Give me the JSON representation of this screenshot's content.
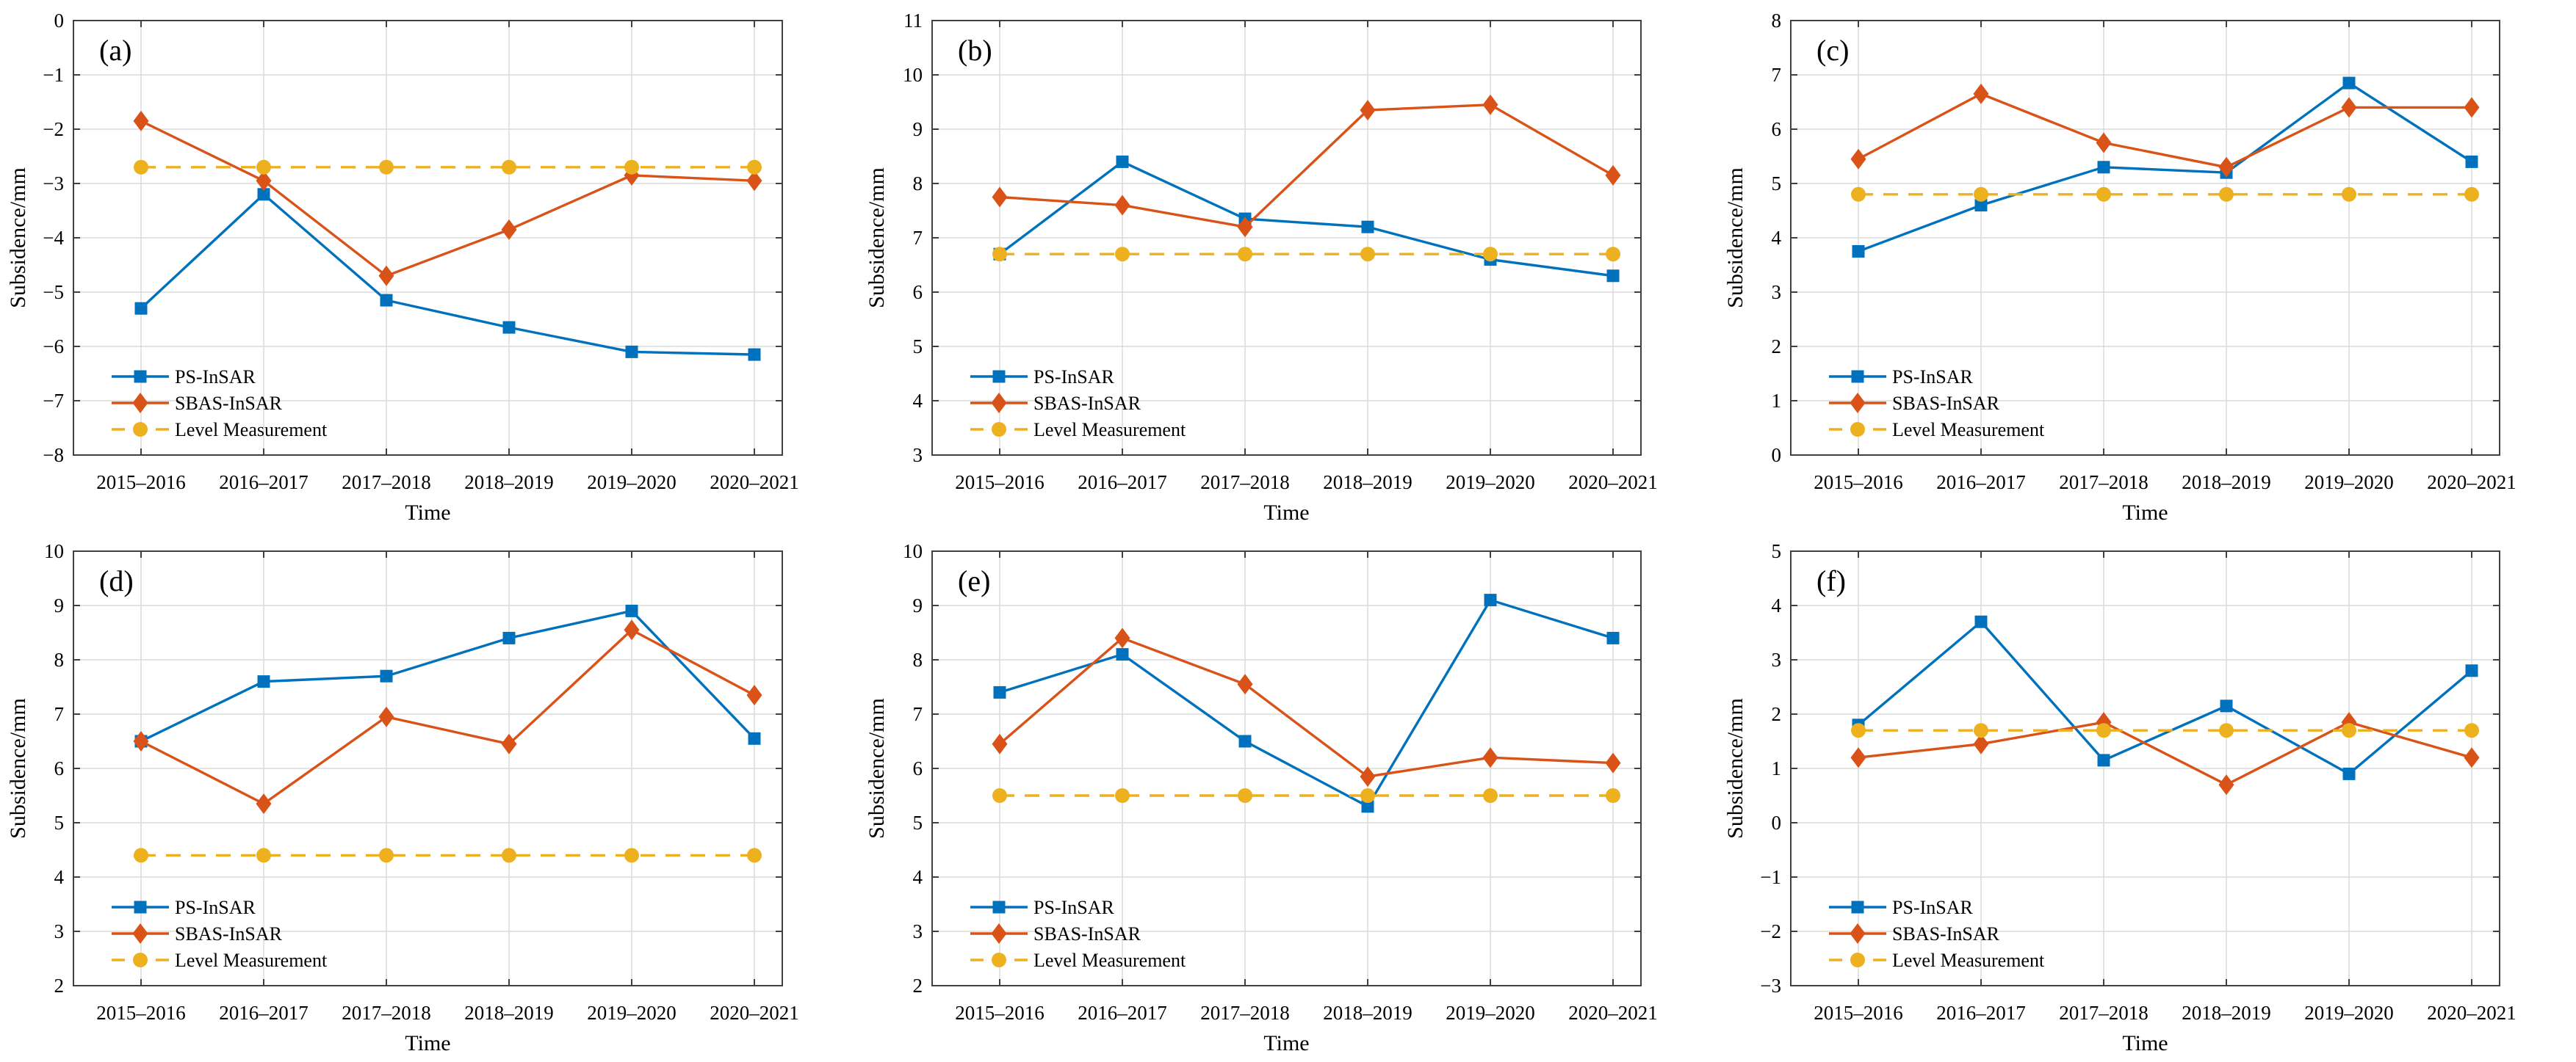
{
  "figure_title": "",
  "xlabel": "Time",
  "ylabel": "Subsidence/mm",
  "categories": [
    "2015–2016",
    "2016–2017",
    "2017–2018",
    "2018–2019",
    "2019–2020",
    "2020–2021"
  ],
  "colors": {
    "ps_insar": "#0072BD",
    "sbas_insar": "#D95319",
    "level_measurement": "#EDB120",
    "grid": "#DBDBDB",
    "axis": "#404040",
    "text": "#000000",
    "background": "#ffffff"
  },
  "legend_labels": [
    "PS-InSAR",
    "SBAS-InSAR",
    "Level Measurement"
  ],
  "chart_data": [
    {
      "type": "line",
      "panel": "(a)",
      "x": [
        "2015–2016",
        "2016–2017",
        "2017–2018",
        "2018–2019",
        "2019–2020",
        "2020–2021"
      ],
      "xlabel": "Time",
      "ylabel": "Subsidence/mm",
      "ylim": [
        -8,
        0
      ],
      "yticks": [
        "0",
        "−1",
        "−2",
        "−3",
        "−4",
        "−5",
        "−6",
        "−7",
        "−8"
      ],
      "grid": true,
      "legend_position": "lower-left",
      "series": [
        {
          "name": "PS-InSAR",
          "marker": "square",
          "line": "solid",
          "color": "#0072BD",
          "values": [
            -5.3,
            -3.2,
            -5.15,
            -5.65,
            -6.1,
            -6.15
          ]
        },
        {
          "name": "SBAS-InSAR",
          "marker": "diamond",
          "line": "solid",
          "color": "#D95319",
          "values": [
            -1.85,
            -2.95,
            -4.7,
            -3.85,
            -2.85,
            -2.95
          ]
        },
        {
          "name": "Level Measurement",
          "marker": "circle",
          "line": "dashed",
          "color": "#EDB120",
          "values": [
            -2.7,
            -2.7,
            -2.7,
            -2.7,
            -2.7,
            -2.7
          ]
        }
      ]
    },
    {
      "type": "line",
      "panel": "(b)",
      "x": [
        "2015–2016",
        "2016–2017",
        "2017–2018",
        "2018–2019",
        "2019–2020",
        "2020–2021"
      ],
      "xlabel": "Time",
      "ylabel": "Subsidence/mm",
      "ylim": [
        3,
        11
      ],
      "yticks": [
        "11",
        "10",
        "9",
        "8",
        "7",
        "6",
        "5",
        "4",
        "3"
      ],
      "grid": true,
      "legend_position": "lower-left",
      "series": [
        {
          "name": "PS-InSAR",
          "marker": "square",
          "line": "solid",
          "color": "#0072BD",
          "values": [
            6.7,
            8.4,
            7.35,
            7.2,
            6.6,
            6.3
          ]
        },
        {
          "name": "SBAS-InSAR",
          "marker": "diamond",
          "line": "solid",
          "color": "#D95319",
          "values": [
            7.75,
            7.6,
            7.2,
            9.35,
            9.45,
            8.15
          ]
        },
        {
          "name": "Level Measurement",
          "marker": "circle",
          "line": "dashed",
          "color": "#EDB120",
          "values": [
            6.7,
            6.7,
            6.7,
            6.7,
            6.7,
            6.7
          ]
        }
      ]
    },
    {
      "type": "line",
      "panel": "(c)",
      "x": [
        "2015–2016",
        "2016–2017",
        "2017–2018",
        "2018–2019",
        "2019–2020",
        "2020–2021"
      ],
      "xlabel": "Time",
      "ylabel": "Subsidence/mm",
      "ylim": [
        0,
        8
      ],
      "yticks": [
        "8",
        "7",
        "6",
        "5",
        "4",
        "3",
        "2",
        "1",
        "0"
      ],
      "grid": true,
      "legend_position": "lower-left",
      "series": [
        {
          "name": "PS-InSAR",
          "marker": "square",
          "line": "solid",
          "color": "#0072BD",
          "values": [
            3.75,
            4.6,
            5.3,
            5.2,
            6.85,
            5.4
          ]
        },
        {
          "name": "SBAS-InSAR",
          "marker": "diamond",
          "line": "solid",
          "color": "#D95319",
          "values": [
            5.45,
            6.65,
            5.75,
            5.3,
            6.4,
            6.4
          ]
        },
        {
          "name": "Level Measurement",
          "marker": "circle",
          "line": "dashed",
          "color": "#EDB120",
          "values": [
            4.8,
            4.8,
            4.8,
            4.8,
            4.8,
            4.8
          ]
        }
      ]
    },
    {
      "type": "line",
      "panel": "(d)",
      "x": [
        "2015–2016",
        "2016–2017",
        "2017–2018",
        "2018–2019",
        "2019–2020",
        "2020–2021"
      ],
      "xlabel": "Time",
      "ylabel": "Subsidence/mm",
      "ylim": [
        2,
        10
      ],
      "yticks": [
        "10",
        "9",
        "8",
        "7",
        "6",
        "5",
        "4",
        "3",
        "2"
      ],
      "grid": true,
      "legend_position": "lower-left",
      "series": [
        {
          "name": "PS-InSAR",
          "marker": "square",
          "line": "solid",
          "color": "#0072BD",
          "values": [
            6.5,
            7.6,
            7.7,
            8.4,
            8.9,
            6.55
          ]
        },
        {
          "name": "SBAS-InSAR",
          "marker": "diamond",
          "line": "solid",
          "color": "#D95319",
          "values": [
            6.5,
            5.35,
            6.95,
            6.45,
            8.55,
            7.35
          ]
        },
        {
          "name": "Level Measurement",
          "marker": "circle",
          "line": "dashed",
          "color": "#EDB120",
          "values": [
            4.4,
            4.4,
            4.4,
            4.4,
            4.4,
            4.4
          ]
        }
      ]
    },
    {
      "type": "line",
      "panel": "(e)",
      "x": [
        "2015–2016",
        "2016–2017",
        "2017–2018",
        "2018–2019",
        "2019–2020",
        "2020–2021"
      ],
      "xlabel": "Time",
      "ylabel": "Subsidence/mm",
      "ylim": [
        2,
        10
      ],
      "yticks": [
        "10",
        "9",
        "8",
        "7",
        "6",
        "5",
        "4",
        "3",
        "2"
      ],
      "grid": true,
      "legend_position": "lower-left",
      "series": [
        {
          "name": "PS-InSAR",
          "marker": "square",
          "line": "solid",
          "color": "#0072BD",
          "values": [
            7.4,
            8.1,
            6.5,
            5.3,
            9.1,
            8.4
          ]
        },
        {
          "name": "SBAS-InSAR",
          "marker": "diamond",
          "line": "solid",
          "color": "#D95319",
          "values": [
            6.45,
            8.4,
            7.55,
            5.85,
            6.2,
            6.1
          ]
        },
        {
          "name": "Level Measurement",
          "marker": "circle",
          "line": "dashed",
          "color": "#EDB120",
          "values": [
            5.5,
            5.5,
            5.5,
            5.5,
            5.5,
            5.5
          ]
        }
      ]
    },
    {
      "type": "line",
      "panel": "(f)",
      "x": [
        "2015–2016",
        "2016–2017",
        "2017–2018",
        "2018–2019",
        "2019–2020",
        "2020–2021"
      ],
      "xlabel": "Time",
      "ylabel": "Subsidence/mm",
      "ylim": [
        -3,
        5
      ],
      "yticks": [
        "5",
        "4",
        "3",
        "2",
        "1",
        "0",
        "−1",
        "−2",
        "−3"
      ],
      "grid": true,
      "legend_position": "lower-left",
      "series": [
        {
          "name": "PS-InSAR",
          "marker": "square",
          "line": "solid",
          "color": "#0072BD",
          "values": [
            1.8,
            3.7,
            1.15,
            2.15,
            0.9,
            2.8
          ]
        },
        {
          "name": "SBAS-InSAR",
          "marker": "diamond",
          "line": "solid",
          "color": "#D95319",
          "values": [
            1.2,
            1.45,
            1.85,
            0.7,
            1.85,
            1.2
          ]
        },
        {
          "name": "Level Measurement",
          "marker": "circle",
          "line": "dashed",
          "color": "#EDB120",
          "values": [
            1.7,
            1.7,
            1.7,
            1.7,
            1.7,
            1.7
          ]
        }
      ]
    }
  ]
}
